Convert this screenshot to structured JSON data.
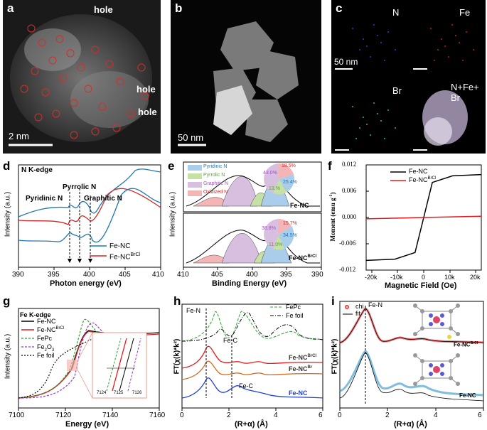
{
  "panels": {
    "a": {
      "label": "a",
      "hole1": "hole",
      "hole2": "hole",
      "hole3": "hole",
      "scale": "2 nm"
    },
    "b": {
      "label": "b",
      "scale": "50 nm"
    },
    "c": {
      "label": "c",
      "n": "N",
      "fe": "Fe",
      "br": "Br",
      "merge_line1": "N+Fe+",
      "merge_line2": "Br",
      "scale": "50 nm"
    },
    "d": {
      "label": "d",
      "title": "N K-edge",
      "pyrrolic": "Pyrrolic N",
      "pyridinic": "Pyridinic N",
      "graphitic": "Graphitic N",
      "ylabel": "Intensity (a.u.)",
      "xlabel": "Photon energy (eV)",
      "xticks": [
        "390",
        "395",
        "400",
        "405",
        "410"
      ],
      "legend": [
        "Fe-NC",
        "Fe-NC"
      ],
      "legend_sup": "BrCl"
    },
    "e": {
      "label": "e",
      "legend": [
        "Pyridinic N",
        "Pyrrolic N",
        "Graphitic N",
        "Oxidized N"
      ],
      "top_sample": "Fe-NC",
      "bottom_sample": "Fe-NC",
      "bottom_sup": "BrCl",
      "top_pie": [
        "43.0%",
        "18.5%",
        "13.%",
        "25.4%"
      ],
      "bottom_pie": [
        "38.8%",
        "15.7%",
        "11.0%",
        "34.5%"
      ],
      "ylabel": "Intensity (a.u.)",
      "xlabel": "Binding Energy (eV)",
      "xticks": [
        "410",
        "405",
        "400",
        "395",
        "390"
      ]
    },
    "f": {
      "label": "f",
      "legend": [
        "Fe-NC",
        "Fe-NC"
      ],
      "legend_sup": "BrCl",
      "ylabel_main": "Moment (emu g",
      "ylabel_sup": "-1",
      "xlabel": "Magnetic Field (Oe)",
      "yticks": [
        "0.012",
        "0.006",
        "0.000",
        "-0.006",
        "-0.012"
      ],
      "xticks": [
        "-20k",
        "-10k",
        "0",
        "10k",
        "20k"
      ]
    },
    "g": {
      "label": "g",
      "title": "Fe K-edge",
      "legend": [
        "Fe-NC",
        "Fe-NC",
        "FePc",
        "Fe",
        "Fe foil"
      ],
      "legend_sup": "BrCl",
      "fe2o3_sub1": "2",
      "fe2o3_o": "O",
      "fe2o3_sub2": "3",
      "inset_xticks": [
        "7124",
        "7125",
        "7126"
      ],
      "ylabel": "Intensity (a.u.)",
      "xlabel": "Energy (eV)",
      "xticks": [
        "7100",
        "7120",
        "7140",
        "7160"
      ]
    },
    "h": {
      "label": "h",
      "fen": "Fe-N",
      "fec1": "Fe-C",
      "fec2": "Fe-C",
      "legend": [
        "FePc",
        "Fe foil"
      ],
      "curve_labels": [
        "Fe-NC",
        "Fe-NC",
        "Fe-NC"
      ],
      "sup1": "BrCl",
      "sup2": "Br",
      "ylabel": "FT(χ(k)*k²)",
      "xlabel": "(R+α) (Å)",
      "xticks": [
        "0",
        "2",
        "4",
        "6"
      ]
    },
    "i": {
      "label": "i",
      "legend": [
        "chi",
        "fit"
      ],
      "fen": "Fe-N",
      "top_sample": "Fe-NC",
      "top_sup": "BrCl",
      "bottom_sample": "Fe-NC",
      "ylabel": "FT(χ(k)*k²)",
      "xlabel": "(R+α) (Å)",
      "xticks": [
        "0",
        "2",
        "4",
        "6"
      ]
    }
  },
  "chart_data": [
    {
      "type": "line",
      "panel": "d",
      "title": "N K-edge",
      "xlabel": "Photon energy (eV)",
      "ylabel": "Intensity (a.u.)",
      "xlim": [
        390,
        410
      ],
      "series": [
        {
          "name": "Fe-NC",
          "color": "#1f77b4"
        },
        {
          "name": "Fe-NCBrCl",
          "color": "#d62728"
        }
      ]
    },
    {
      "type": "area",
      "panel": "e",
      "xlabel": "Binding Energy (eV)",
      "ylabel": "Intensity (a.u.)",
      "xlim": [
        410,
        390
      ],
      "series": [
        {
          "name": "Pyridinic N",
          "color": "#a9cdea"
        },
        {
          "name": "Pyrrolic N",
          "color": "#c7e0a6"
        },
        {
          "name": "Graphitic N",
          "color": "#d8bfe0"
        },
        {
          "name": "Oxidized N",
          "color": "#f3b5b5"
        }
      ]
    },
    {
      "type": "line",
      "panel": "f",
      "xlabel": "Magnetic Field (Oe)",
      "ylabel": "Moment (emu g-1)",
      "xlim": [
        -20000,
        20000
      ],
      "ylim": [
        -0.012,
        0.012
      ],
      "series": [
        {
          "name": "Fe-NC",
          "x": [
            -20000,
            -10000,
            -3000,
            0,
            3000,
            10000,
            20000
          ],
          "y": [
            -0.0098,
            -0.0095,
            -0.008,
            0,
            0.008,
            0.0095,
            0.0098
          ],
          "color": "#000000"
        },
        {
          "name": "Fe-NCBrCl",
          "x": [
            -20000,
            20000
          ],
          "y": [
            -0.0003,
            0.0003
          ],
          "color": "#e31a1c"
        }
      ]
    },
    {
      "type": "line",
      "panel": "g",
      "title": "Fe K-edge",
      "xlabel": "Energy (eV)",
      "ylabel": "Intensity (a.u.)",
      "xlim": [
        7100,
        7160
      ],
      "series": [
        {
          "name": "Fe-NC",
          "color": "#000000"
        },
        {
          "name": "Fe-NCBrCl",
          "color": "#e31a1c"
        },
        {
          "name": "FePc",
          "color": "#2ca02c"
        },
        {
          "name": "Fe2O3",
          "color": "#9b30d9"
        },
        {
          "name": "Fe foil",
          "color": "#000000"
        }
      ]
    },
    {
      "type": "line",
      "panel": "h",
      "xlabel": "(R+α) (Å)",
      "ylabel": "FT(χ(k)*k²)",
      "xlim": [
        0,
        6
      ],
      "series": [
        {
          "name": "FePc",
          "color": "#2ca02c"
        },
        {
          "name": "Fe foil",
          "color": "#000000"
        },
        {
          "name": "Fe-NCBrCl",
          "color": "#e31a1c"
        },
        {
          "name": "Fe-NCBr",
          "color": "#d2691e"
        },
        {
          "name": "Fe-NC",
          "color": "#1f3fd0"
        }
      ]
    },
    {
      "type": "line",
      "panel": "i",
      "xlabel": "(R+α) (Å)",
      "ylabel": "FT(χ(k)*k²)",
      "xlim": [
        0,
        6
      ],
      "series": [
        {
          "name": "chi",
          "color": "#e31a1c"
        },
        {
          "name": "fit",
          "color": "#000000"
        }
      ]
    }
  ]
}
